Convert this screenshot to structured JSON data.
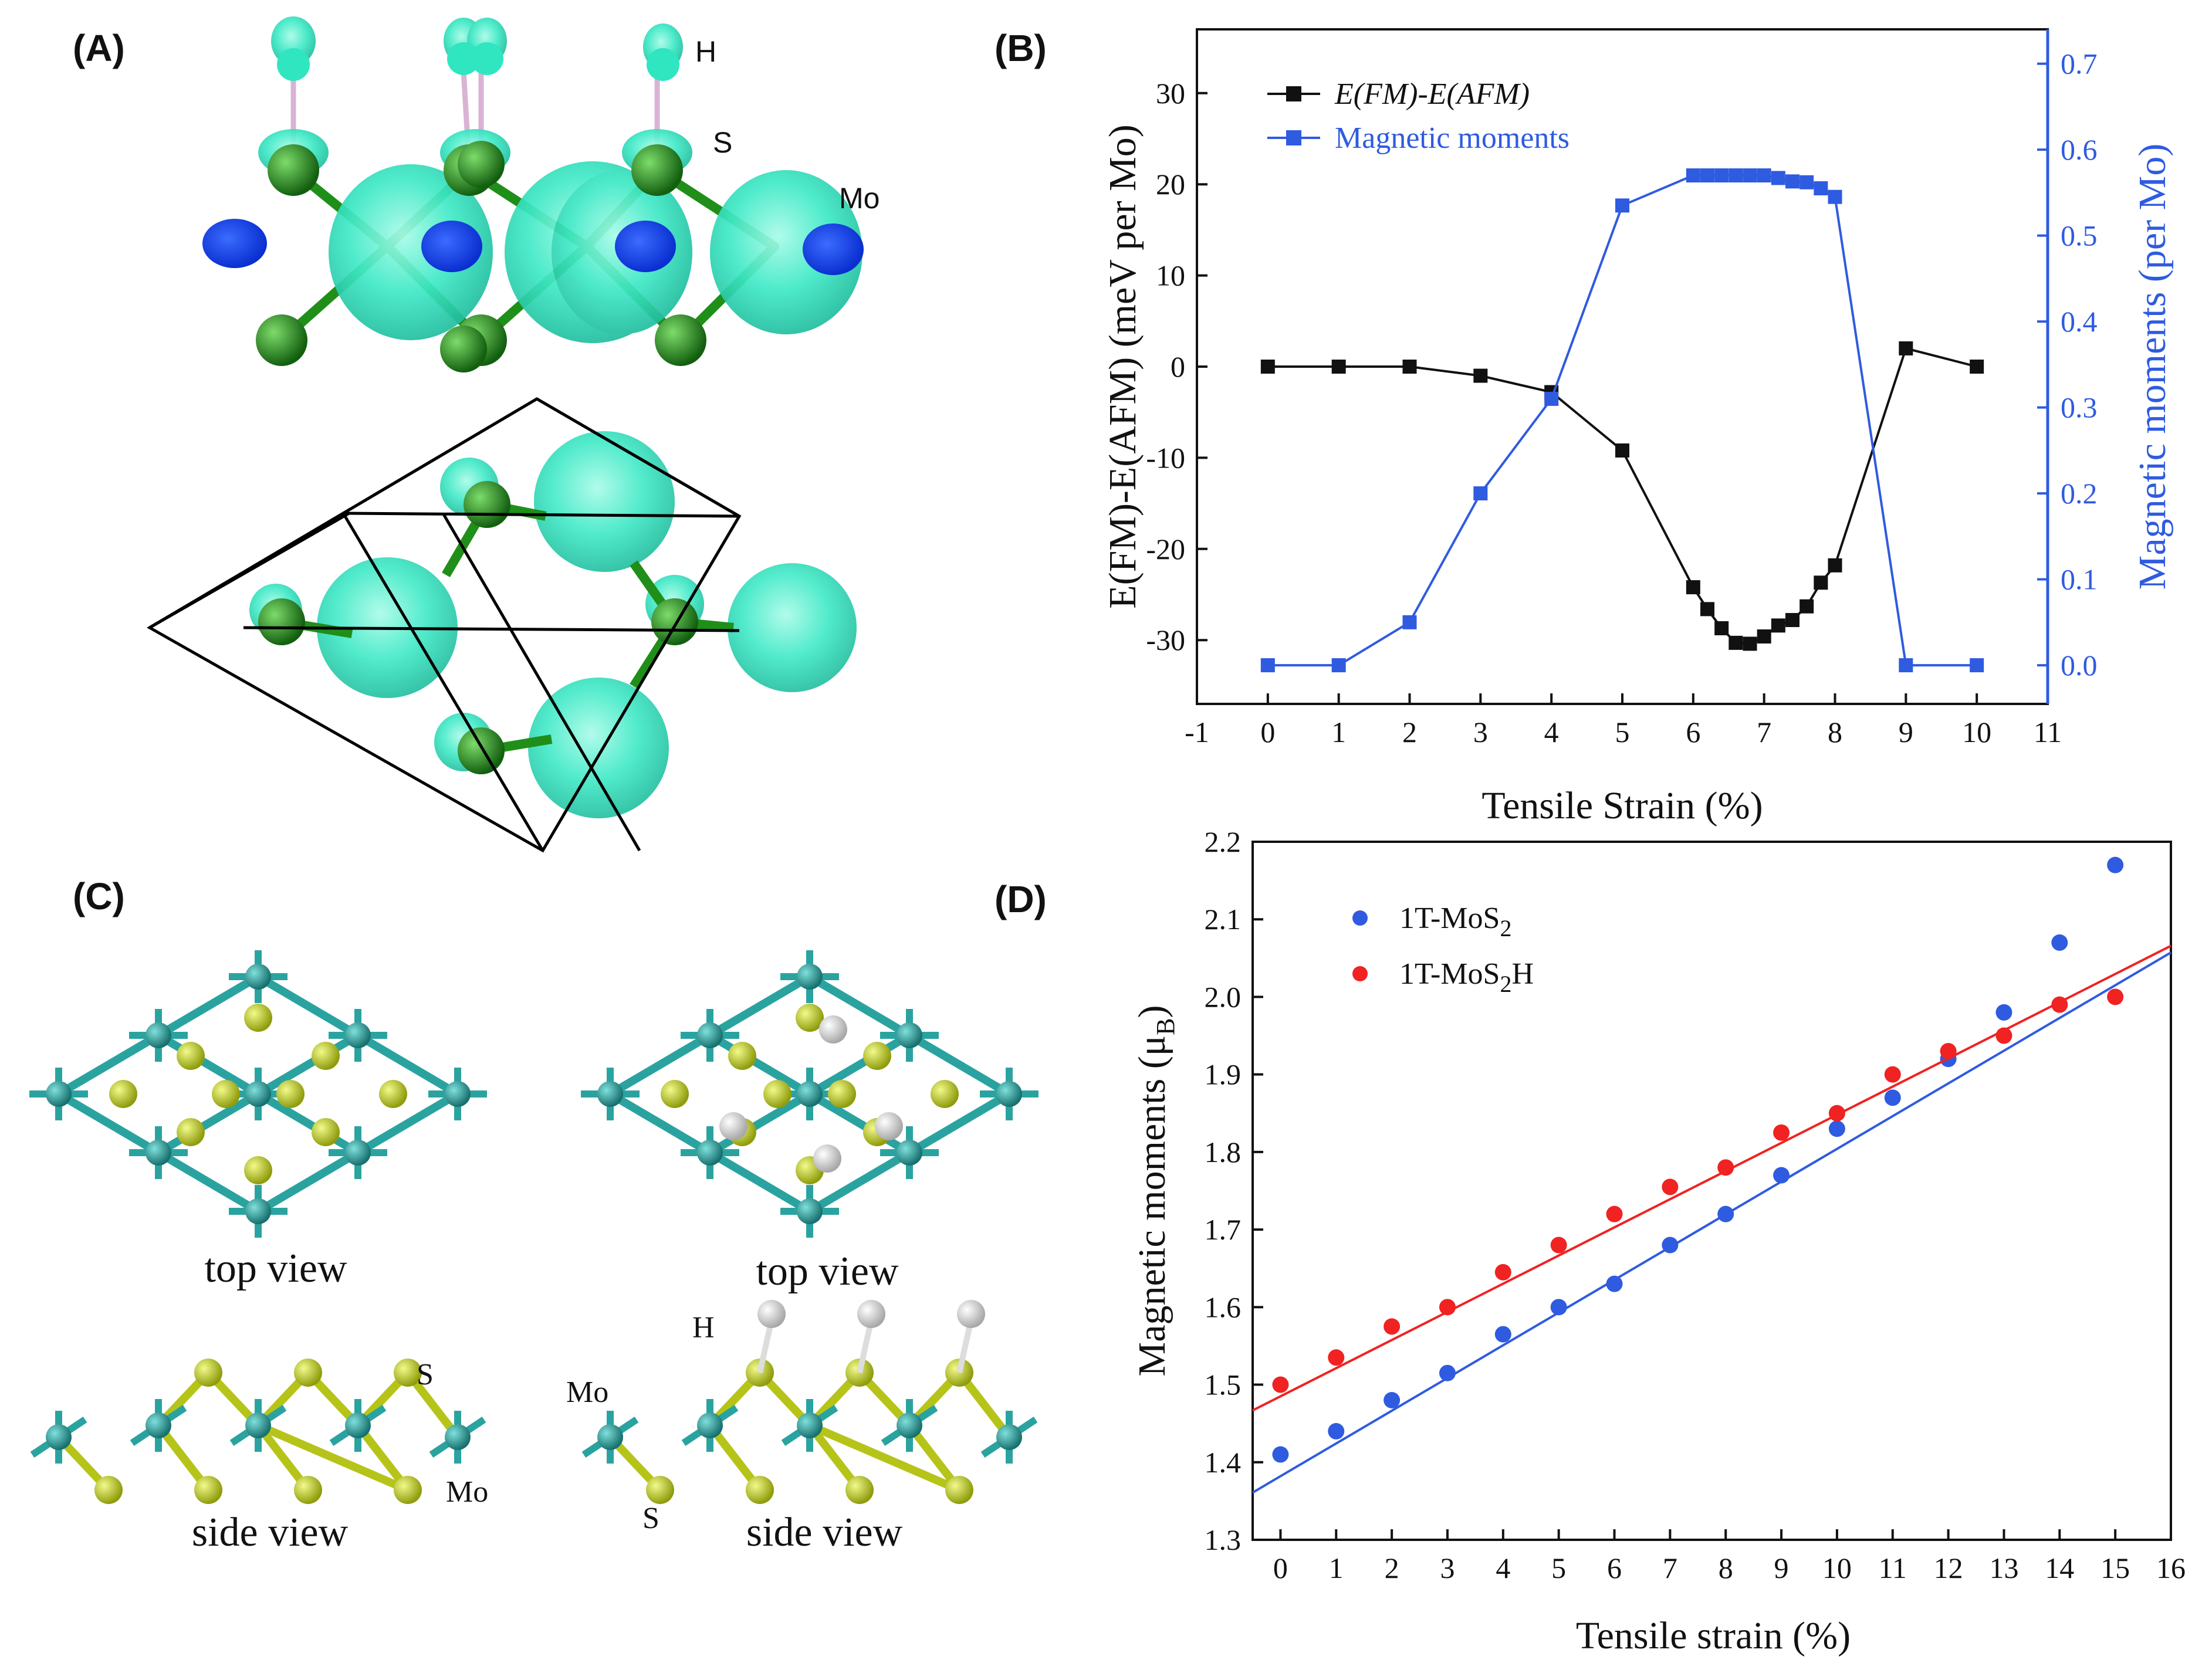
{
  "panels": {
    "a": {
      "label": "(A)",
      "atoms": {
        "h": "H",
        "s": "S",
        "mo": "Mo"
      }
    },
    "b": {
      "label": "(B)"
    },
    "c": {
      "label": "(C)",
      "views": {
        "top_left": "top view",
        "top_right": "top view",
        "side_left": "side view",
        "side_right": "side view"
      },
      "atoms": {
        "s_left": "S",
        "mo_left": "Mo",
        "h_right": "H",
        "mo_right": "Mo",
        "s_right": "S"
      }
    },
    "d": {
      "label": "(D)"
    }
  },
  "colors": {
    "black_series": "#111111",
    "blue_series": "#2f5be0",
    "red_series": "#f02222",
    "cyan": "#2fe6c0",
    "green": "#1f8f1a",
    "teal": "#2aa3a0",
    "yellow": "#c8d81c"
  },
  "chart_data": [
    {
      "id": "B",
      "type": "line",
      "xlabel": "Tensile Strain (%)",
      "ylabel": "E(FM)-E(AFM) (meV per Mo)",
      "ylabel_right": "Magnetic moments (per Mo)",
      "xlim": [
        -1,
        11
      ],
      "xticks": [
        "-1",
        "0",
        "1",
        "2",
        "3",
        "4",
        "5",
        "6",
        "7",
        "8",
        "9",
        "10",
        "11"
      ],
      "ylim": [
        -37,
        37
      ],
      "yticks": [
        "-30",
        "-20",
        "-10",
        "0",
        "10",
        "20",
        "30"
      ],
      "ylim_right": [
        -0.045,
        0.74
      ],
      "yticks_right": [
        "0.0",
        "0.1",
        "0.2",
        "0.3",
        "0.4",
        "0.5",
        "0.6",
        "0.7"
      ],
      "legend_position": "top-left",
      "series": [
        {
          "name": "E(FM)-E(AFM)",
          "axis": "left",
          "color": "#111111",
          "x": [
            0,
            1,
            2,
            3,
            4,
            5,
            6,
            6.2,
            6.4,
            6.6,
            6.8,
            7,
            7.2,
            7.4,
            7.6,
            7.8,
            8,
            9,
            10
          ],
          "y": [
            0,
            0,
            0,
            -1,
            -2.8,
            -9.2,
            -24.2,
            -26.6,
            -28.7,
            -30.3,
            -30.4,
            -29.6,
            -28.4,
            -27.8,
            -26.3,
            -23.7,
            -21.8,
            2,
            0
          ]
        },
        {
          "name": "Magnetic moments",
          "axis": "right",
          "color": "#2f5be0",
          "x": [
            0,
            1,
            2,
            3,
            4,
            5,
            6,
            6.2,
            6.4,
            6.6,
            6.8,
            7,
            7.2,
            7.4,
            7.6,
            7.8,
            8,
            9,
            10
          ],
          "y": [
            0,
            0,
            0.05,
            0.2,
            0.31,
            0.535,
            0.57,
            0.57,
            0.57,
            0.57,
            0.57,
            0.57,
            0.567,
            0.563,
            0.562,
            0.555,
            0.545,
            0,
            0
          ]
        }
      ]
    },
    {
      "id": "D",
      "type": "scatter",
      "xlabel": "Tensile strain (%)",
      "ylabel": "Magnetic moments (μ",
      "ylabel_sub": "B",
      "ylabel_close": ")",
      "xlim": [
        -0.5,
        16
      ],
      "xticks": [
        "0",
        "1",
        "2",
        "3",
        "4",
        "5",
        "6",
        "7",
        "8",
        "9",
        "10",
        "11",
        "12",
        "13",
        "14",
        "15",
        "16"
      ],
      "ylim": [
        1.3,
        2.2
      ],
      "yticks": [
        "1.3",
        "1.4",
        "1.5",
        "1.6",
        "1.7",
        "1.8",
        "1.9",
        "2.0",
        "2.1",
        "2.2"
      ],
      "legend_position": "top-left",
      "series": [
        {
          "name": "1T-MoS2",
          "legend_main": "1T-MoS",
          "legend_sub": "2",
          "legend_tail": "",
          "color": "#2f5be0",
          "x": [
            0,
            1,
            2,
            3,
            4,
            5,
            6,
            7,
            8,
            9,
            10,
            11,
            12,
            13,
            14,
            15
          ],
          "y": [
            1.41,
            1.44,
            1.48,
            1.515,
            1.565,
            1.6,
            1.63,
            1.68,
            1.72,
            1.77,
            1.83,
            1.87,
            1.92,
            1.98,
            2.07,
            2.17
          ],
          "fit": {
            "intercept": 1.382,
            "slope": 0.0422
          }
        },
        {
          "name": "1T-MoS2H",
          "legend_main": "1T-MoS",
          "legend_sub": "2",
          "legend_tail": "H",
          "color": "#f02222",
          "x": [
            0,
            1,
            2,
            3,
            4,
            5,
            6,
            7,
            8,
            9,
            10,
            11,
            12,
            13,
            14,
            15
          ],
          "y": [
            1.5,
            1.535,
            1.575,
            1.6,
            1.645,
            1.68,
            1.72,
            1.755,
            1.78,
            1.825,
            1.85,
            1.9,
            1.93,
            1.95,
            1.99,
            2.0
          ],
          "fit": {
            "intercept": 1.485,
            "slope": 0.0363
          }
        }
      ]
    }
  ]
}
